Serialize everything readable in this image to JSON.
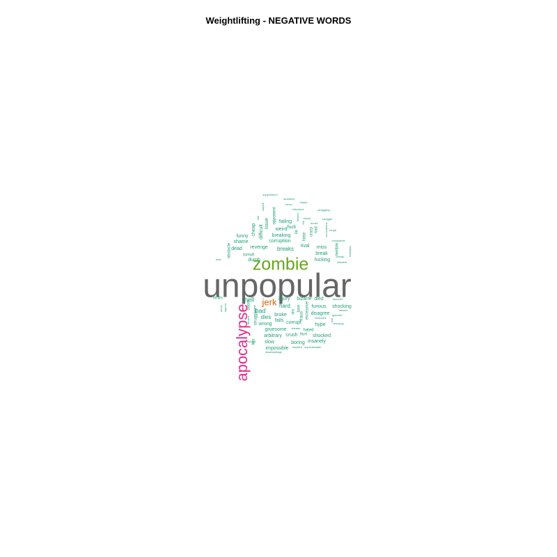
{
  "chart_data": {
    "type": "wordcloud",
    "title": "Weightlifting - NEGATIVE WORDS",
    "colors": {
      "largest": "#666666",
      "second": "#e7298a",
      "third": "#66a61e",
      "fourth": "#d95f02",
      "common": "#1b9e77"
    },
    "words": [
      {
        "text": "unpopular",
        "freq": 100
      },
      {
        "text": "apocalypse",
        "freq": 55
      },
      {
        "text": "zombie",
        "freq": 45
      },
      {
        "text": "jerk",
        "freq": 22
      },
      {
        "text": "hell",
        "freq": 12
      },
      {
        "text": "bad",
        "freq": 12
      },
      {
        "text": "dies",
        "freq": 11
      },
      {
        "text": "breaks",
        "freq": 11
      },
      {
        "text": "hard",
        "freq": 11
      },
      {
        "text": "injury",
        "freq": 10
      },
      {
        "text": "bizarre",
        "freq": 10
      },
      {
        "text": "died",
        "freq": 10
      },
      {
        "text": "furious",
        "freq": 10
      },
      {
        "text": "shocking",
        "freq": 10
      },
      {
        "text": "disagree",
        "freq": 10
      },
      {
        "text": "hype",
        "freq": 10
      },
      {
        "text": "broke",
        "freq": 10
      },
      {
        "text": "fails",
        "freq": 10
      },
      {
        "text": "corrupt",
        "freq": 10
      },
      {
        "text": "wrong",
        "freq": 10
      },
      {
        "text": "gruesome",
        "freq": 10
      },
      {
        "text": "crush",
        "freq": 10
      },
      {
        "text": "hated",
        "freq": 9
      },
      {
        "text": "hurt",
        "freq": 9
      },
      {
        "text": "shocked",
        "freq": 10
      },
      {
        "text": "insanely",
        "freq": 10
      },
      {
        "text": "boring",
        "freq": 10
      },
      {
        "text": "slow",
        "freq": 10
      },
      {
        "text": "arbitrary",
        "freq": 10
      },
      {
        "text": "impossible",
        "freq": 10
      },
      {
        "text": "fucking",
        "freq": 10
      },
      {
        "text": "break",
        "freq": 10
      },
      {
        "text": "revenge",
        "freq": 10
      },
      {
        "text": "corruption",
        "freq": 10
      },
      {
        "text": "breaking",
        "freq": 10
      },
      {
        "text": "dead",
        "freq": 10
      },
      {
        "text": "dumb",
        "freq": 10
      },
      {
        "text": "tumult",
        "freq": 9
      },
      {
        "text": "shame",
        "freq": 10
      },
      {
        "text": "funny",
        "freq": 10
      },
      {
        "text": "cheap",
        "freq": 10
      },
      {
        "text": "difficult",
        "freq": 10
      },
      {
        "text": "issue",
        "freq": 10
      },
      {
        "text": "failing",
        "freq": 10
      },
      {
        "text": "weird",
        "freq": 10
      },
      {
        "text": "fuck",
        "freq": 10
      },
      {
        "text": "rival",
        "freq": 10
      },
      {
        "text": "miss",
        "freq": 10
      },
      {
        "text": "limits",
        "freq": 9
      },
      {
        "text": "opponent",
        "freq": 9
      },
      {
        "text": "false",
        "freq": 9
      },
      {
        "text": "crazy",
        "freq": 9
      },
      {
        "text": "sad",
        "freq": 9
      },
      {
        "text": "lie",
        "freq": 9
      },
      {
        "text": "terrible",
        "freq": 9
      },
      {
        "text": "obstacle",
        "freq": 8
      },
      {
        "text": "doom",
        "freq": 8
      },
      {
        "text": "excessive",
        "freq": 8
      },
      {
        "text": "struggles",
        "freq": 8
      },
      {
        "text": "sin",
        "freq": 8
      },
      {
        "text": "lose",
        "freq": 8
      },
      {
        "text": "fraud",
        "freq": 8
      },
      {
        "text": "lies",
        "freq": 8
      },
      {
        "text": "suppression",
        "freq": 5
      },
      {
        "text": "randomly",
        "freq": 5
      },
      {
        "text": "superb",
        "freq": 5
      },
      {
        "text": "terror",
        "freq": 5
      },
      {
        "text": "ridiculous",
        "freq": 5
      },
      {
        "text": "stupid",
        "freq": 5
      },
      {
        "text": "struggling",
        "freq": 5
      },
      {
        "text": "obese",
        "freq": 5
      },
      {
        "text": "doubt",
        "freq": 5
      },
      {
        "text": "struggle",
        "freq": 5
      },
      {
        "text": "rough",
        "freq": 5
      },
      {
        "text": "complaints",
        "freq": 5
      },
      {
        "text": "accusations",
        "freq": 5
      },
      {
        "text": "flawed",
        "freq": 5
      },
      {
        "text": "mistakes",
        "freq": 5
      },
      {
        "text": "cheated",
        "freq": 5
      },
      {
        "text": "cheats",
        "freq": 5
      },
      {
        "text": "toxic",
        "freq": 5
      },
      {
        "text": "risk",
        "freq": 5
      },
      {
        "text": "tense",
        "freq": 5
      },
      {
        "text": "injured",
        "freq": 5
      },
      {
        "text": "disorder",
        "freq": 5
      },
      {
        "text": "misses",
        "freq": 5
      },
      {
        "text": "confused",
        "freq": 5
      },
      {
        "text": "ignorant",
        "freq": 5
      },
      {
        "text": "worrying",
        "freq": 5
      },
      {
        "text": "denied",
        "freq": 5
      },
      {
        "text": "cheater",
        "freq": 5
      },
      {
        "text": "bullshit",
        "freq": 5
      },
      {
        "text": "backfire",
        "freq": 5
      },
      {
        "text": "unpredictable",
        "freq": 5
      },
      {
        "text": "disadvantage",
        "freq": 5
      },
      {
        "text": "hell",
        "freq": 5
      },
      {
        "text": "fail",
        "freq": 5
      },
      {
        "text": "lost",
        "freq": 5
      }
    ]
  }
}
